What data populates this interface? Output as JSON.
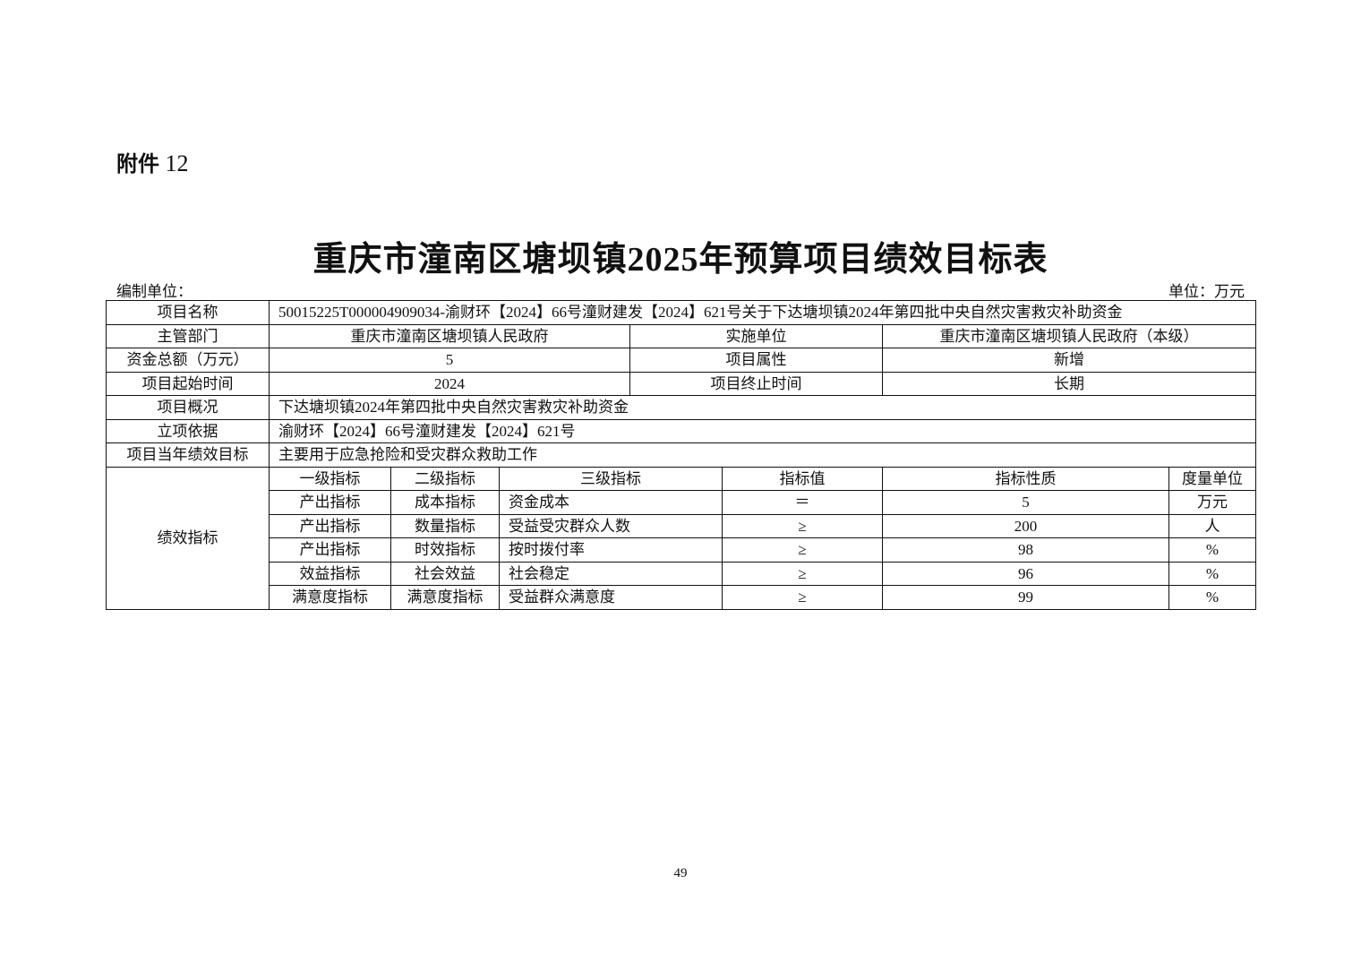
{
  "attachment": {
    "label": "附件",
    "number": "12"
  },
  "title": "重庆市潼南区塘坝镇2025年预算项目绩效目标表",
  "prepared_by_label": "编制单位：",
  "unit_label": "单位：万元",
  "info": {
    "project_name_label": "项目名称",
    "project_name": "50015225T000004909034-渝财环【2024】66号潼财建发【2024】621号关于下达塘坝镇2024年第四批中央自然灾害救灾补助资金",
    "dept_label": "主管部门",
    "dept": "重庆市潼南区塘坝镇人民政府",
    "impl_label": "实施单位",
    "impl": "重庆市潼南区塘坝镇人民政府（本级）",
    "total_label": "资金总额（万元）",
    "total": "5",
    "attr_label": "项目属性",
    "attr": "新增",
    "start_label": "项目起始时间",
    "start": "2024",
    "end_label": "项目终止时间",
    "end": "长期",
    "overview_label": "项目概况",
    "overview": "下达塘坝镇2024年第四批中央自然灾害救灾补助资金",
    "basis_label": "立项依据",
    "basis": "渝财环【2024】66号潼财建发【2024】621号",
    "goal_label": "项目当年绩效目标",
    "goal": "主要用于应急抢险和受灾群众救助工作"
  },
  "indicators": {
    "label": "绩效指标",
    "headers": [
      "一级指标",
      "二级指标",
      "三级指标",
      "指标值",
      "指标性质",
      "度量单位"
    ],
    "rows": [
      [
        "产出指标",
        "成本指标",
        "资金成本",
        "＝",
        "5",
        "万元"
      ],
      [
        "产出指标",
        "数量指标",
        "受益受灾群众人数",
        "≥",
        "200",
        "人"
      ],
      [
        "产出指标",
        "时效指标",
        "按时拨付率",
        "≥",
        "98",
        "%"
      ],
      [
        "效益指标",
        "社会效益",
        "社会稳定",
        "≥",
        "96",
        "%"
      ],
      [
        "满意度指标",
        "满意度指标",
        "受益群众满意度",
        "≥",
        "99",
        "%"
      ]
    ]
  },
  "page_number": "49"
}
